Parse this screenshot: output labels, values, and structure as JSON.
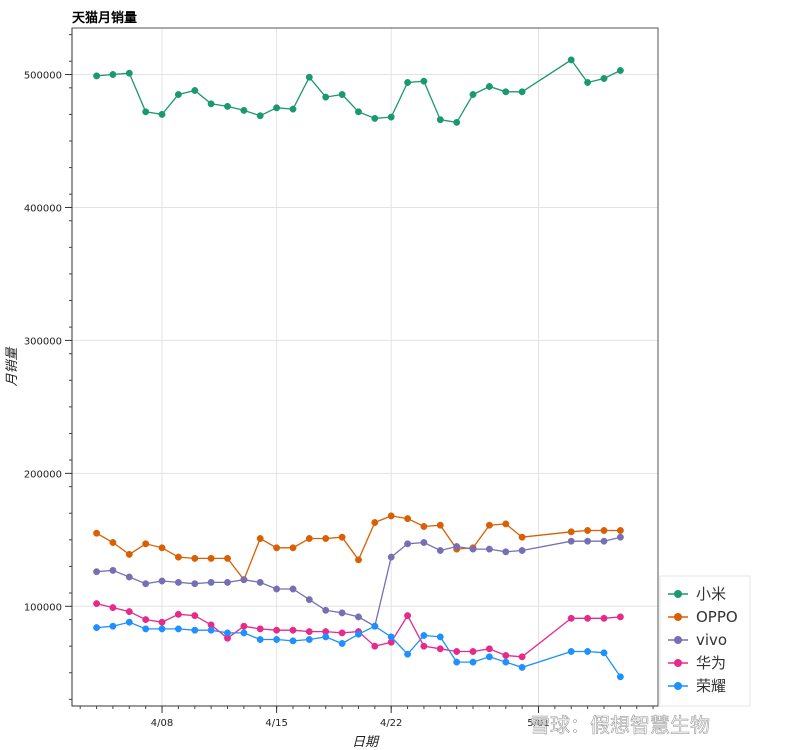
{
  "chart_data": {
    "type": "line",
    "title": "天猫月销量",
    "xlabel": "日期",
    "ylabel": "月销量",
    "x_ticks": [
      "4/08",
      "4/15",
      "4/22",
      "5/01"
    ],
    "y_ticks": [
      "100000",
      "200000",
      "300000",
      "400000",
      "500000"
    ],
    "y_tick_values": [
      100000,
      200000,
      300000,
      400000,
      500000
    ],
    "ylim": [
      25000,
      535000
    ],
    "x_dates": [
      "4/04",
      "4/05",
      "4/06",
      "4/07",
      "4/08",
      "4/09",
      "4/10",
      "4/11",
      "4/12",
      "4/13",
      "4/14",
      "4/15",
      "4/16",
      "4/17",
      "4/18",
      "4/19",
      "4/20",
      "4/21",
      "4/22",
      "4/23",
      "4/24",
      "4/25",
      "4/26",
      "4/27",
      "4/28",
      "4/29",
      "4/30",
      "5/01",
      "5/02",
      "5/03",
      "5/04",
      "5/05",
      "5/06",
      "5/07",
      "5/08"
    ],
    "xlim_index": [
      -1.5,
      34.3
    ],
    "grid": true,
    "legend_position": "bottom-right",
    "series": [
      {
        "name": "小米",
        "color": "#1a9a6c",
        "values": [
          499000,
          500000,
          501000,
          472000,
          470000,
          485000,
          488000,
          478000,
          476000,
          473000,
          469000,
          475000,
          474000,
          498000,
          483000,
          485000,
          472000,
          467000,
          468000,
          494000,
          495000,
          466000,
          464000,
          485000,
          491000,
          487000,
          487000,
          511000,
          494000,
          497000,
          503000
        ]
      },
      {
        "name": "OPPO",
        "color": "#d95f02",
        "values": [
          155000,
          148000,
          139000,
          147000,
          144000,
          137000,
          136000,
          136000,
          136000,
          120000,
          151000,
          144000,
          144000,
          151000,
          151000,
          152000,
          135000,
          163000,
          168000,
          166000,
          160000,
          161000,
          143000,
          144000,
          161000,
          162000,
          152000,
          156000,
          157000,
          157000,
          157000
        ]
      },
      {
        "name": "vivo",
        "color": "#7570b3",
        "values": [
          126000,
          127000,
          122000,
          117000,
          119000,
          118000,
          117000,
          118000,
          118000,
          120000,
          118000,
          113000,
          113000,
          105000,
          97000,
          95000,
          92000,
          85000,
          137000,
          147000,
          148000,
          142000,
          145000,
          143000,
          143000,
          141000,
          142000,
          149000,
          149000,
          149000,
          152000
        ]
      },
      {
        "name": "华为",
        "color": "#e7298a",
        "values": [
          102000,
          99000,
          96000,
          90000,
          88000,
          94000,
          93000,
          86000,
          76000,
          85000,
          83000,
          82000,
          82000,
          81000,
          81000,
          80000,
          81000,
          70000,
          73000,
          93000,
          70000,
          68000,
          66000,
          66000,
          68000,
          63000,
          62000,
          91000,
          91000,
          91000,
          92000
        ]
      },
      {
        "name": "荣耀",
        "color": "#1e90ff",
        "values": [
          84000,
          85000,
          88000,
          83000,
          83000,
          83000,
          82000,
          82000,
          80000,
          80000,
          75000,
          75000,
          74000,
          75000,
          77000,
          72000,
          79000,
          85000,
          77000,
          64000,
          78000,
          77000,
          58000,
          58000,
          62000,
          58000,
          54000,
          66000,
          66000,
          65000,
          47000
        ]
      }
    ],
    "series_x_index": [
      0,
      1,
      2,
      3,
      4,
      5,
      6,
      7,
      8,
      9,
      10,
      11,
      12,
      13,
      14,
      15,
      16,
      17,
      18,
      19,
      20,
      21,
      22,
      23,
      24,
      25,
      26,
      29,
      30,
      31,
      32
    ]
  },
  "watermark": "雪球：假想智慧生物"
}
